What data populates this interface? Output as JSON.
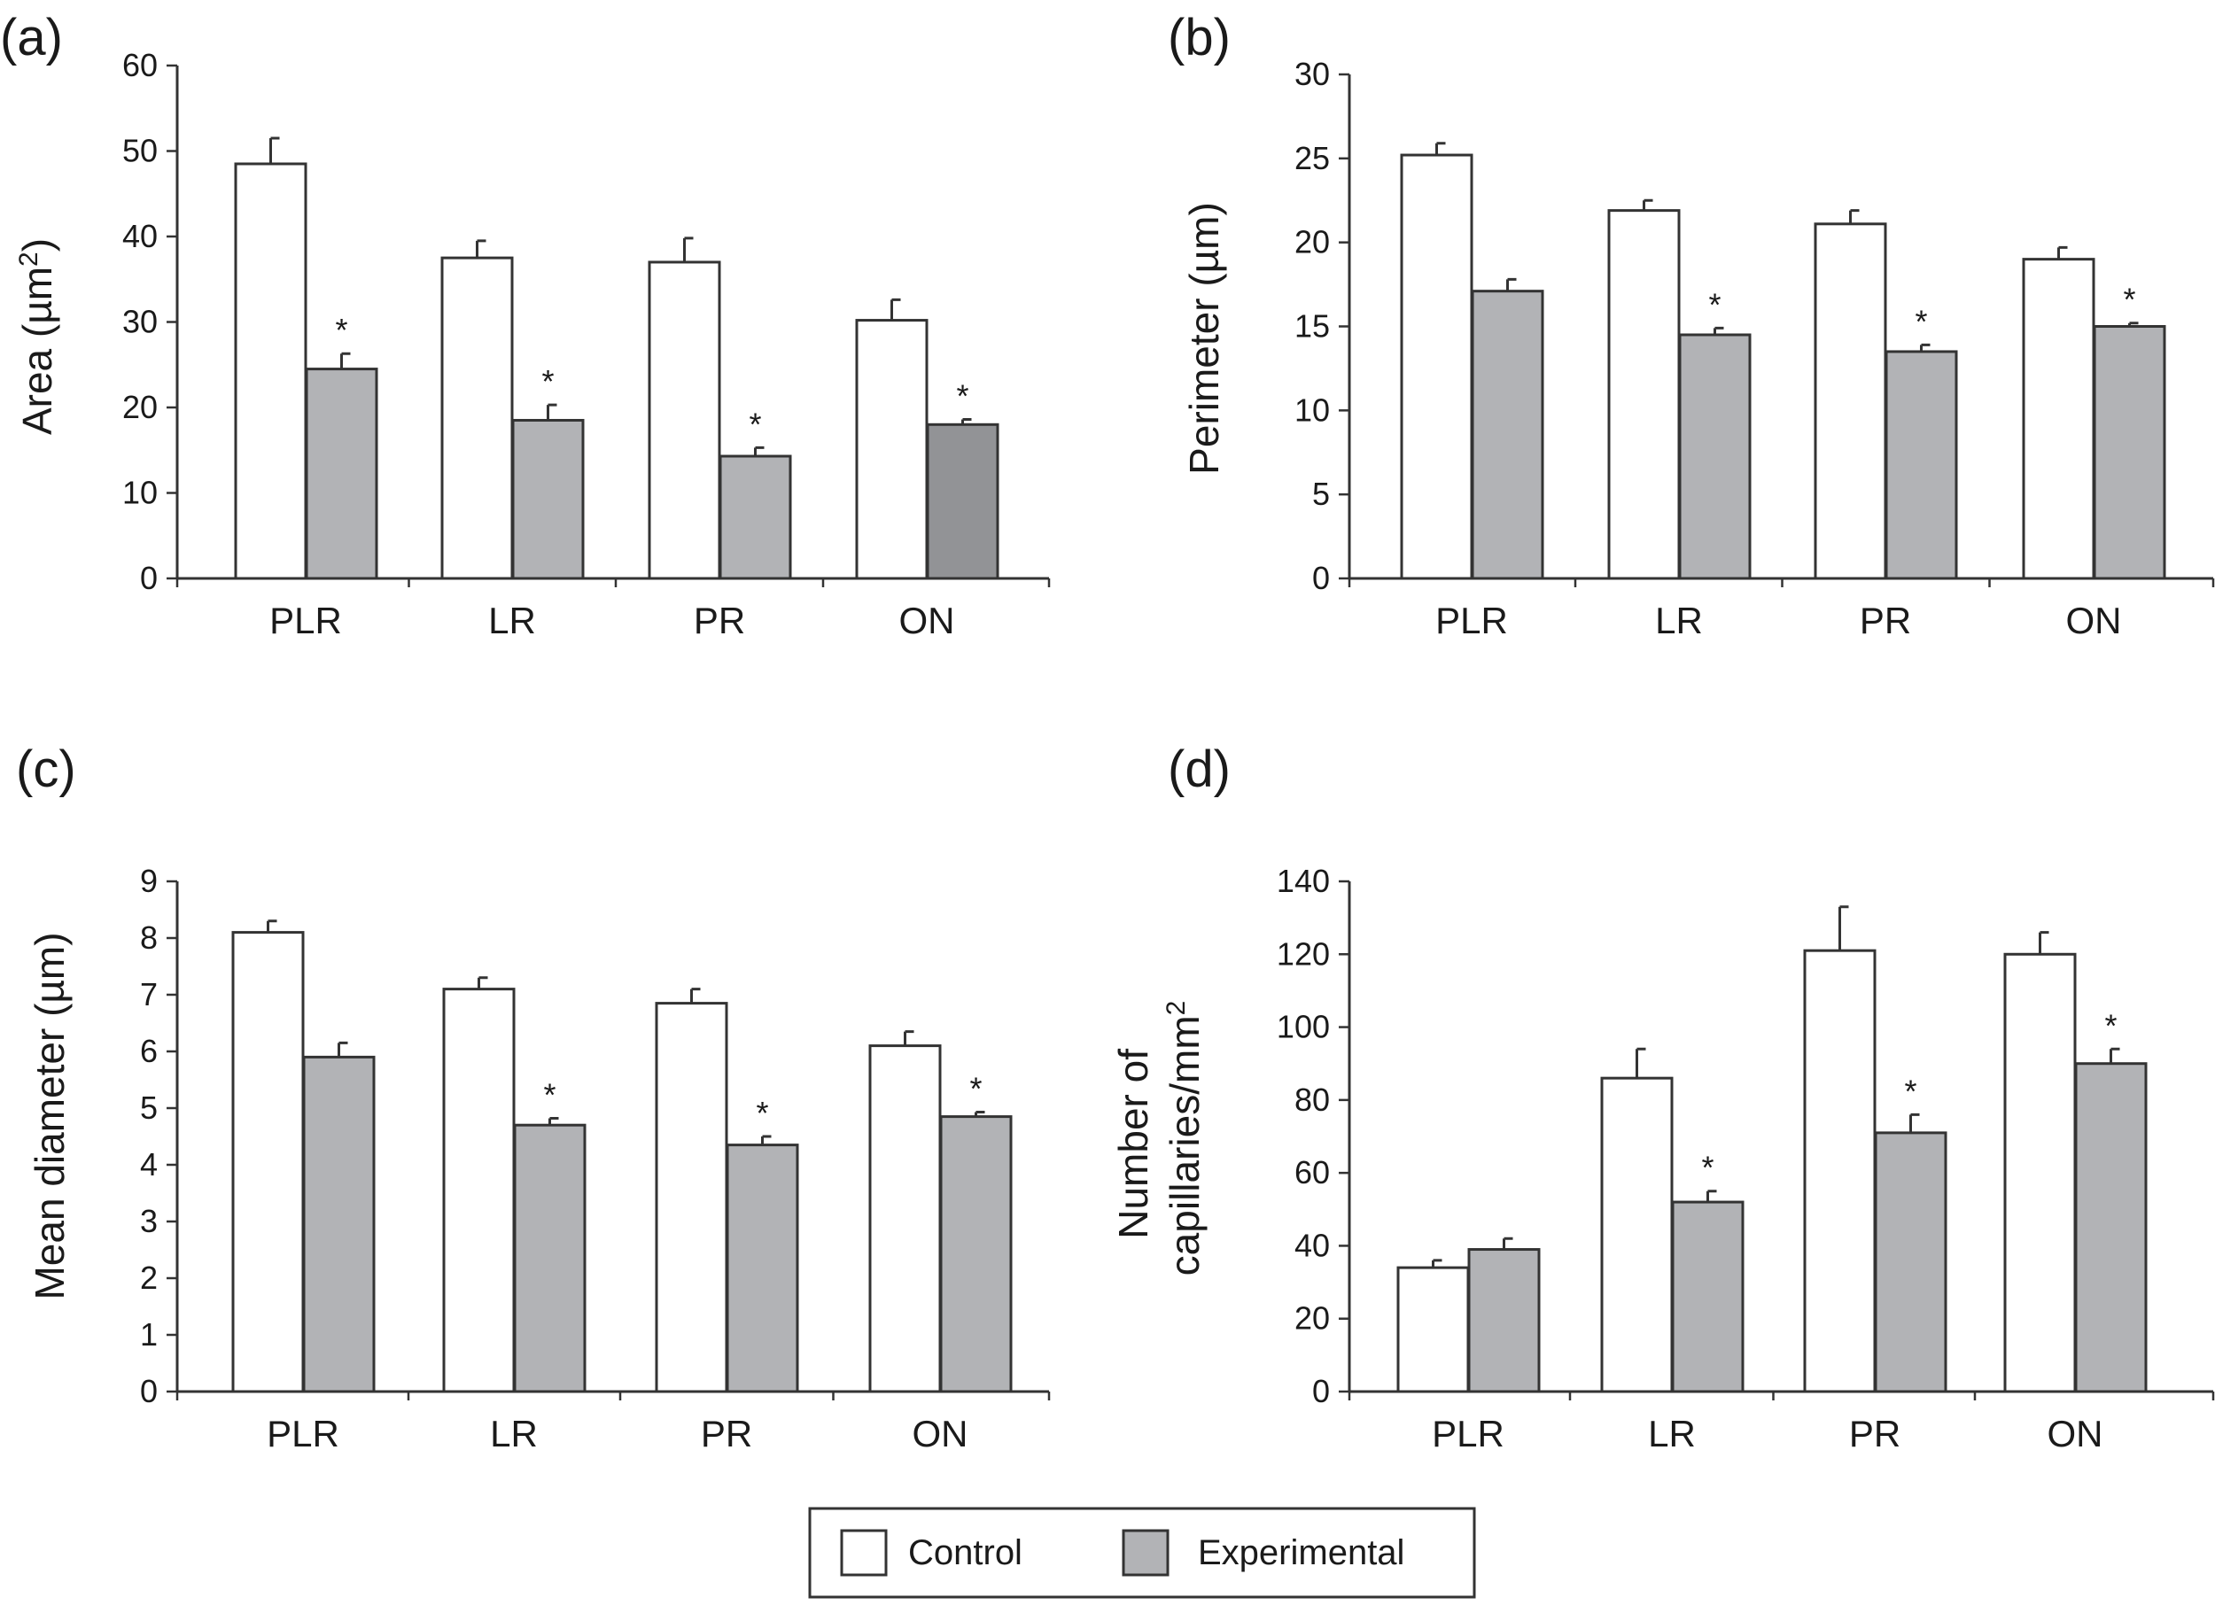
{
  "legend": {
    "items": [
      {
        "label": "Control",
        "color": "#ffffff"
      },
      {
        "label": "Experimental",
        "color": "#b2b3b6"
      }
    ]
  },
  "chart_data": [
    {
      "panel": "(a)",
      "type": "bar",
      "categories": [
        "PLR",
        "LR",
        "PR",
        "ON"
      ],
      "ylabel_main": "Area (µm",
      "ylabel_sup": "2",
      "ylabel_end": ")",
      "ylim": [
        0,
        60
      ],
      "yticks": [
        0,
        10,
        20,
        30,
        40,
        50,
        60
      ],
      "series": [
        {
          "name": "Control",
          "values": [
            48.5,
            37.5,
            37.0,
            30.2
          ],
          "errors": [
            3.0,
            2.0,
            2.8,
            2.4
          ],
          "color": "#ffffff"
        },
        {
          "name": "Experimental",
          "values": [
            24.5,
            18.5,
            14.3,
            18.0
          ],
          "errors": [
            1.8,
            1.8,
            1.0,
            0.6
          ],
          "color": "#b2b3b6",
          "colors_by_category": [
            "#b2b3b6",
            "#b2b3b6",
            "#b2b3b6",
            "#929396"
          ]
        }
      ],
      "significance": [
        [
          "",
          "*"
        ],
        [
          "",
          "*"
        ],
        [
          "",
          "*"
        ],
        [
          "",
          "*"
        ]
      ]
    },
    {
      "panel": "(b)",
      "type": "bar",
      "categories": [
        "PLR",
        "LR",
        "PR",
        "ON"
      ],
      "ylabel_main": "Perimeter (µm)",
      "ylim": [
        0,
        30
      ],
      "yticks": [
        0,
        5,
        10,
        15,
        20,
        25,
        30
      ],
      "series": [
        {
          "name": "Control",
          "values": [
            25.2,
            21.9,
            21.1,
            19.0
          ],
          "errors": [
            0.7,
            0.6,
            0.8,
            0.7
          ],
          "color": "#ffffff"
        },
        {
          "name": "Experimental",
          "values": [
            17.1,
            14.5,
            13.5,
            15.0
          ],
          "errors": [
            0.7,
            0.4,
            0.4,
            0.2
          ],
          "color": "#b2b3b6"
        }
      ],
      "significance": [
        [
          "",
          ""
        ],
        [
          "",
          "*"
        ],
        [
          "",
          "*"
        ],
        [
          "",
          "*"
        ]
      ]
    },
    {
      "panel": "(c)",
      "type": "bar",
      "categories": [
        "PLR",
        "LR",
        "PR",
        "ON"
      ],
      "ylabel_main": "Mean diameter (µm)",
      "ylim": [
        0,
        9
      ],
      "yticks": [
        0,
        1,
        2,
        3,
        4,
        5,
        6,
        7,
        8,
        9
      ],
      "series": [
        {
          "name": "Control",
          "values": [
            8.1,
            7.1,
            6.85,
            6.1
          ],
          "errors": [
            0.2,
            0.2,
            0.25,
            0.25
          ],
          "color": "#ffffff"
        },
        {
          "name": "Experimental",
          "values": [
            5.9,
            4.7,
            4.35,
            4.85
          ],
          "errors": [
            0.25,
            0.12,
            0.15,
            0.08
          ],
          "color": "#b2b3b6"
        }
      ],
      "significance": [
        [
          "",
          ""
        ],
        [
          "",
          "*"
        ],
        [
          "",
          "*"
        ],
        [
          "",
          "*"
        ]
      ]
    },
    {
      "panel": "(d)",
      "type": "bar",
      "categories": [
        "PLR",
        "LR",
        "PR",
        "ON"
      ],
      "ylabel_line1": "Number of",
      "ylabel_line2": "capillaries/mm",
      "ylabel_sup": "2",
      "ylim": [
        0,
        140
      ],
      "yticks": [
        0,
        20,
        40,
        60,
        80,
        100,
        120,
        140
      ],
      "series": [
        {
          "name": "Control",
          "values": [
            34,
            86,
            121,
            120
          ],
          "errors": [
            2,
            8,
            12,
            6
          ],
          "color": "#ffffff"
        },
        {
          "name": "Experimental",
          "values": [
            39,
            52,
            71,
            90
          ],
          "errors": [
            3,
            3,
            5,
            4
          ],
          "color": "#b2b3b6"
        }
      ],
      "significance": [
        [
          "",
          ""
        ],
        [
          "",
          "*"
        ],
        [
          "",
          "*"
        ],
        [
          "",
          "*"
        ]
      ]
    }
  ]
}
